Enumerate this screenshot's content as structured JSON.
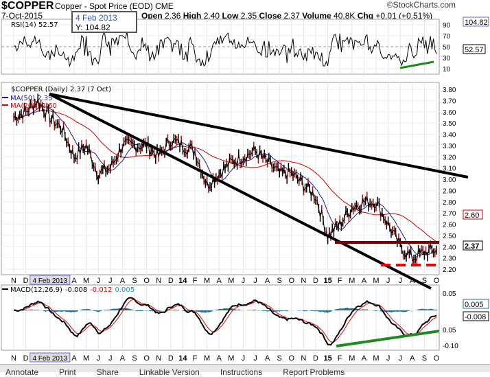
{
  "header": {
    "symbol": "$COPPER",
    "name": "Copper - Spot Price (EOD)",
    "exchange": "CME",
    "brand": "©StockCharts.com",
    "date": "7-Oct-2015",
    "open_label": "Open",
    "open": "2.36",
    "high_label": "High",
    "high": "2.40",
    "low_label": "Low",
    "low": "2.35",
    "close_label": "Close",
    "close": "2.37",
    "volume_label": "Volume",
    "volume": "40.8K",
    "chg_label": "Chg",
    "chg": "+0.01 (+0.51%)"
  },
  "tooltip": {
    "date": "4 Feb 2013",
    "value": "Y: 104.82"
  },
  "rsi": {
    "label": "RSI(14) 52.57",
    "value_tag": "52.57",
    "cursor_tag": "104.82",
    "ticks": [
      "90",
      "70",
      "50",
      "30",
      "10"
    ]
  },
  "price": {
    "label": "$COPPER (Daily) 2.37 (7 Oct)",
    "ma50_label": "MA(50) 2.35",
    "ma200_label": "MA(200) 2.60",
    "close_tag": "2.37",
    "ma200_tag": "2.60",
    "ticks": [
      "3.80",
      "3.70",
      "3.60",
      "3.50",
      "3.40",
      "3.30",
      "3.20",
      "3.10",
      "3.00",
      "2.90",
      "2.80",
      "2.70",
      "2.60",
      "2.50",
      "2.40",
      "2.30",
      "2.20"
    ]
  },
  "macd": {
    "label": "MACD(12,26,9)",
    "v1": "-0.008",
    "v2": "-0.012",
    "v3": "0.005",
    "tag": "-0.008",
    "tag2": "0.005",
    "ticks": [
      "0.05",
      "0.05",
      "-0.10"
    ]
  },
  "xaxis": {
    "labels": [
      "N",
      "D",
      "4 Feb 2013",
      "A",
      "M",
      "J",
      "J",
      "A",
      "S",
      "O",
      "N",
      "D",
      "14",
      "F",
      "M",
      "A",
      "M",
      "J",
      "J",
      "A",
      "S",
      "O",
      "N",
      "D",
      "15",
      "F",
      "M",
      "A",
      "M",
      "J",
      "J",
      "A",
      "S",
      "O"
    ]
  },
  "footer": {
    "items": [
      "Annotate",
      "Print",
      "Share",
      "Linkable Version",
      "Instructions",
      "Report Problems"
    ]
  },
  "colors": {
    "ma50": "#1a1a99",
    "ma200": "#cc0000",
    "trend": "#000000",
    "support": "#7a0000",
    "green": "#1f8a1f",
    "hist": "#1f6e8c"
  },
  "chart_data": {
    "type": "line",
    "title": "$COPPER (Daily)",
    "ylim": [
      2.2,
      3.8
    ],
    "months": [
      "Nov12",
      "Dec12",
      "Jan13",
      "Feb13",
      "Mar13",
      "Apr13",
      "May13",
      "Jun13",
      "Jul13",
      "Aug13",
      "Sep13",
      "Oct13",
      "Nov13",
      "Dec13",
      "Jan14",
      "Feb14",
      "Mar14",
      "Apr14",
      "May14",
      "Jun14",
      "Jul14",
      "Aug14",
      "Sep14",
      "Oct14",
      "Nov14",
      "Dec14",
      "Jan15",
      "Feb15",
      "Mar15",
      "Apr15",
      "May15",
      "Jun15",
      "Jul15",
      "Aug15",
      "Sep15",
      "Oct15"
    ],
    "close": [
      3.55,
      3.6,
      3.7,
      3.55,
      3.45,
      3.2,
      3.3,
      3.05,
      3.1,
      3.3,
      3.3,
      3.3,
      3.2,
      3.35,
      3.3,
      3.25,
      2.95,
      3.05,
      3.15,
      3.2,
      3.25,
      3.15,
      3.05,
      3.05,
      2.95,
      2.85,
      2.5,
      2.6,
      2.75,
      2.8,
      2.8,
      2.6,
      2.4,
      2.3,
      2.35,
      2.37
    ]
  }
}
